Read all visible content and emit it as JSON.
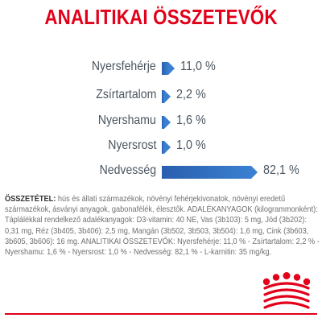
{
  "title": "ANALITIKAI ÖSSZETEVŐK",
  "analytics": [
    {
      "label": "Nyersfehérje",
      "value": "11,0 %",
      "percent": 11.0
    },
    {
      "label": "Zsírtartalom",
      "value": "2,2 %",
      "percent": 2.2
    },
    {
      "label": "Nyershamu",
      "value": "1,6 %",
      "percent": 1.6
    },
    {
      "label": "Nyersrost",
      "value": "1,0 %",
      "percent": 1.0
    },
    {
      "label": "Nedvesség",
      "value": "82,1 %",
      "percent": 82.1
    }
  ],
  "composition": {
    "heading": "ÖSSZETÉTEL:",
    "text": " hús és állati származékok, növényi fehérjekivonatok, növényi eredetű származékok, ásványi anyagok, gabonafélék, élesztők. ADALÉKANYAGOK (kilogrammonként): Táplálékkal rendelkező adalékanyagok: D3-vitamin: 40 NE, Vas (3b103): 5 mg, Jód (3b202): 0,31 mg, Réz (3b405, 3b406): 2,5 mg, Mangán (3b502, 3b503, 3b504): 1,6 mg, Cink (3b603, 3b605, 3b606): 16 mg. ANALITIKAI ÖSSZETEVŐK: Nyersfehérje: 11,0 % - Zsírtartalom: 2,2 % - Nyershamu: 1,6 % - Nyersrost: 1,0 % - Nedvesség: 82,1 % - L-karnitin: 35 mg/kg."
  },
  "colors": {
    "brand_red": "#e2001a",
    "bar_blue": "#2a5fae"
  },
  "logo_icon": "royal-canin-crown-logo"
}
